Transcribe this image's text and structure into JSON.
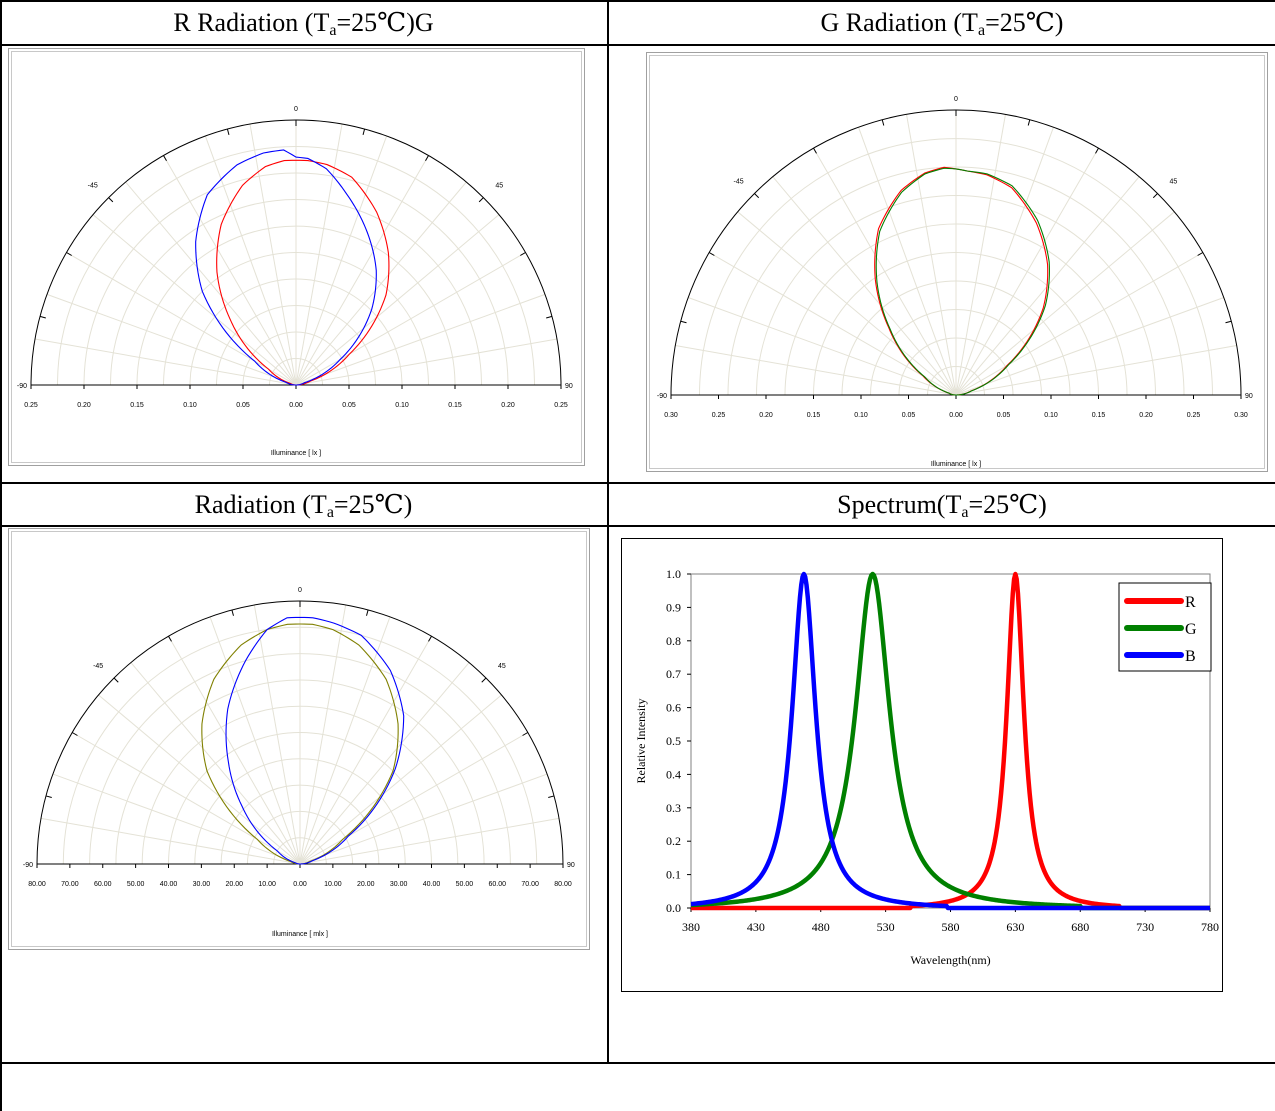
{
  "titles": {
    "r_radiation": {
      "pre": "R Radiation (T",
      "sub": "a",
      "post": "=25℃)G"
    },
    "g_radiation": {
      "pre": "G Radiation (T",
      "sub": "a",
      "post": "=25℃)"
    },
    "radiation": {
      "pre": "Radiation (T",
      "sub": "a",
      "post": "=25℃)"
    },
    "spectrum": {
      "pre": "Spectrum(T",
      "sub": "a",
      "post": "=25℃)"
    }
  },
  "chart_data": [
    {
      "type": "polar",
      "id": "r_radiation",
      "angle_labels": [
        "-90",
        "-45",
        "0",
        "45",
        "90"
      ],
      "radial_max": 0.25,
      "radial_ticks": [
        "0.25",
        "0.20",
        "0.15",
        "0.10",
        "0.05",
        "0.00",
        "0.05",
        "0.10",
        "0.15",
        "0.20",
        "0.25"
      ],
      "xlabel": "Illuminance [ lx ]",
      "series": [
        {
          "color": "#ff0000",
          "angles": [
            -90,
            -75,
            -60,
            -45,
            -35,
            -25,
            -15,
            -8,
            -3,
            0,
            3,
            8,
            15,
            25,
            35,
            45,
            60,
            75,
            90
          ],
          "values": [
            0,
            0.005,
            0.03,
            0.088,
            0.13,
            0.167,
            0.195,
            0.208,
            0.212,
            0.212,
            0.212,
            0.21,
            0.203,
            0.18,
            0.152,
            0.12,
            0.058,
            0.014,
            0
          ]
        },
        {
          "color": "#0000ff",
          "angles": [
            -90,
            -75,
            -60,
            -45,
            -35,
            -25,
            -15,
            -8,
            -3,
            0,
            3,
            8,
            15,
            25,
            35,
            45,
            60,
            75,
            90
          ],
          "values": [
            0,
            0.01,
            0.045,
            0.125,
            0.165,
            0.198,
            0.215,
            0.221,
            0.222,
            0.215,
            0.214,
            0.206,
            0.186,
            0.159,
            0.132,
            0.101,
            0.048,
            0.008,
            0
          ]
        }
      ]
    },
    {
      "type": "polar",
      "id": "g_radiation",
      "angle_labels": [
        "-90",
        "-45",
        "0",
        "45",
        "90"
      ],
      "radial_max": 0.3,
      "radial_ticks": [
        "0.30",
        "0.25",
        "0.20",
        "0.15",
        "0.10",
        "0.05",
        "0.00",
        "0.05",
        "0.10",
        "0.15",
        "0.20",
        "0.25",
        "0.30"
      ],
      "xlabel": "Illuminance [ lx ]",
      "series": [
        {
          "color": "#ff0000",
          "angles": [
            -90,
            -75,
            -60,
            -45,
            -35,
            -25,
            -15,
            -8,
            -3,
            0,
            3,
            8,
            15,
            25,
            35,
            45,
            60,
            75,
            90
          ],
          "values": [
            0,
            0.008,
            0.04,
            0.1,
            0.148,
            0.193,
            0.223,
            0.236,
            0.24,
            0.238,
            0.236,
            0.234,
            0.226,
            0.2,
            0.168,
            0.13,
            0.062,
            0.016,
            0
          ]
        },
        {
          "color": "#008000",
          "angles": [
            -90,
            -75,
            -60,
            -45,
            -35,
            -25,
            -15,
            -8,
            -3,
            0,
            3,
            8,
            15,
            25,
            35,
            45,
            60,
            75,
            90
          ],
          "values": [
            0,
            0.008,
            0.038,
            0.098,
            0.145,
            0.19,
            0.221,
            0.235,
            0.239,
            0.238,
            0.236,
            0.235,
            0.228,
            0.203,
            0.171,
            0.133,
            0.064,
            0.017,
            0
          ]
        }
      ]
    },
    {
      "type": "polar",
      "id": "radiation",
      "angle_labels": [
        "-90",
        "-45",
        "0",
        "45",
        "90"
      ],
      "radial_max": 80,
      "radial_ticks": [
        "80.00",
        "70.00",
        "60.00",
        "50.00",
        "40.00",
        "30.00",
        "20.00",
        "10.00",
        "0.00",
        "10.00",
        "20.00",
        "30.00",
        "40.00",
        "50.00",
        "60.00",
        "70.00",
        "80.00"
      ],
      "xlabel": "Illuminance [ mlx ]",
      "series": [
        {
          "color": "#808000",
          "angles": [
            -90,
            -75,
            -60,
            -45,
            -35,
            -25,
            -15,
            -8,
            -3,
            0,
            3,
            8,
            15,
            25,
            35,
            45,
            60,
            75,
            90
          ],
          "values": [
            0,
            3,
            15,
            40,
            52,
            62,
            69,
            72,
            73,
            73,
            73,
            72,
            69,
            62,
            52,
            40,
            15,
            3,
            0
          ]
        },
        {
          "color": "#0000ff",
          "angles": [
            -90,
            -75,
            -60,
            -45,
            -35,
            -25,
            -15,
            -8,
            -3,
            0,
            3,
            8,
            15,
            25,
            35,
            45,
            60,
            75,
            90
          ],
          "values": [
            0,
            1.5,
            8,
            25,
            38,
            52,
            64,
            72,
            75,
            75,
            75,
            74,
            72,
            65,
            55,
            41,
            17,
            4,
            0
          ]
        }
      ]
    },
    {
      "type": "line",
      "id": "spectrum",
      "xlabel": "Wavelength(nm)",
      "ylabel": "Relative Intensity",
      "xlim": [
        380,
        780
      ],
      "ylim": [
        0,
        1.0
      ],
      "xticks": [
        380,
        430,
        480,
        530,
        580,
        630,
        680,
        730,
        780
      ],
      "yticks": [
        "0.0",
        "0.1",
        "0.2",
        "0.3",
        "0.4",
        "0.5",
        "0.6",
        "0.7",
        "0.8",
        "0.9",
        "1.0"
      ],
      "legend_position": "top-right",
      "series": [
        {
          "name": "R",
          "color": "#ff0000",
          "peak_nm": 630,
          "fwhm_nm": 16
        },
        {
          "name": "G",
          "color": "#008000",
          "peak_nm": 520,
          "fwhm_nm": 32
        },
        {
          "name": "B",
          "color": "#0000ff",
          "peak_nm": 467,
          "fwhm_nm": 22
        }
      ]
    }
  ]
}
